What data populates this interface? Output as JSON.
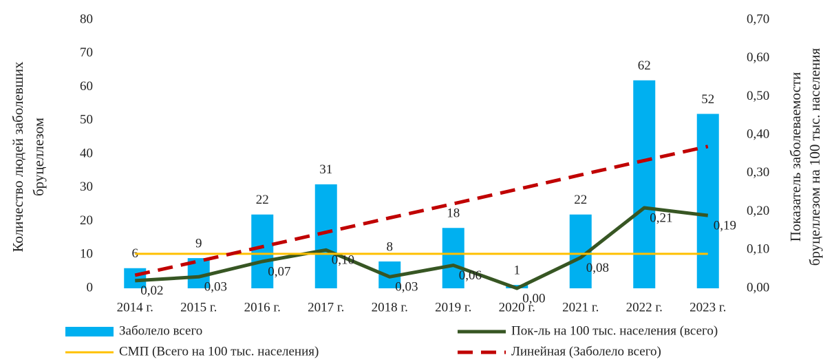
{
  "chart_data": {
    "type": "bar",
    "categories": [
      "2014 г.",
      "2015 г.",
      "2016 г.",
      "2017 г.",
      "2018 г.",
      "2019 г.",
      "2020 г.",
      "2021 г.",
      "2022 г.",
      "2023 г."
    ],
    "series": [
      {
        "name": "Заболело всего",
        "type": "bar",
        "color": "#00b0f0",
        "values": [
          6,
          9,
          22,
          31,
          8,
          18,
          1,
          22,
          62,
          52
        ]
      },
      {
        "name": "Пок-ль на 100 тыс. населения (всего)",
        "type": "line",
        "axis": "y2",
        "color": "#375623",
        "values": [
          0.02,
          0.03,
          0.07,
          0.1,
          0.03,
          0.06,
          0.0,
          0.08,
          0.21,
          0.19
        ],
        "value_labels": [
          "0,02",
          "0,03",
          "0,07",
          "0,10",
          "0,03",
          "0,06",
          "0,00",
          "0,08",
          "0,21",
          "0,19"
        ]
      },
      {
        "name": "СМП (Всего на 100 тыс. населения)",
        "type": "line",
        "axis": "y2",
        "color": "#ffc000",
        "values": [
          0.09,
          0.09,
          0.09,
          0.09,
          0.09,
          0.09,
          0.09,
          0.09,
          0.09,
          0.09
        ]
      },
      {
        "name": "Линейная (Заболело всего)",
        "type": "line",
        "dashed": true,
        "color": "#c00000",
        "values": [
          3.9,
          8.1,
          12.4,
          16.7,
          21.0,
          25.2,
          29.5,
          33.8,
          38.1,
          42.3
        ]
      }
    ],
    "y_label": [
      "Количество людей заболевших",
      "бруцеллезом"
    ],
    "y2_label": [
      "Показатель заболеваемости",
      "бруцеллезом на 100 тыс. населения"
    ],
    "ylim": [
      0,
      80
    ],
    "yticks": [
      0,
      10,
      20,
      30,
      40,
      50,
      60,
      70,
      80
    ],
    "y2lim": [
      0,
      0.7
    ],
    "y2ticks": [
      {
        "value": 0,
        "label": "0,00"
      },
      {
        "value": 0.1,
        "label": "0,10"
      },
      {
        "value": 0.2,
        "label": "0,20"
      },
      {
        "value": 0.3,
        "label": "0,30"
      },
      {
        "value": 0.4,
        "label": "0,40"
      },
      {
        "value": 0.5,
        "label": "0,50"
      },
      {
        "value": 0.6,
        "label": "0,60"
      },
      {
        "value": 0.7,
        "label": "0,70"
      }
    ],
    "legend": "bottom"
  }
}
